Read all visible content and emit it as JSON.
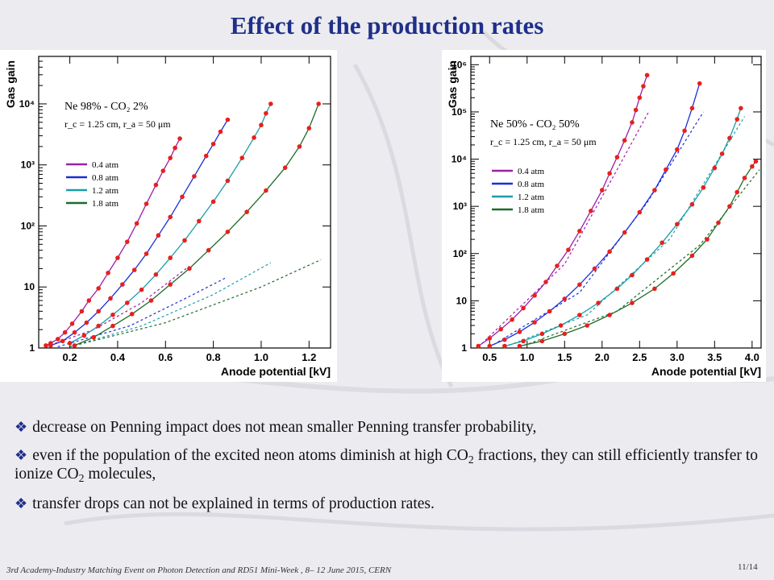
{
  "title": "Effect of the production rates",
  "chart_data": [
    {
      "type": "line",
      "ylabel": "Gas gain",
      "xlabel": "Anode potential [kV]",
      "yscale": "log",
      "ylim": [
        1,
        60000
      ],
      "xlim": [
        0.07,
        1.29
      ],
      "xticks": [
        0.2,
        0.4,
        0.6,
        0.8,
        1.0,
        1.2
      ],
      "xtick_labels": [
        "0.2",
        "0.4",
        "0.6",
        "0.8",
        "1.0",
        "1.2"
      ],
      "yticks": [
        1,
        10,
        100,
        1000,
        10000
      ],
      "ytick_labels": [
        "1",
        "10",
        "10²",
        "10³",
        "10⁴"
      ],
      "annotations": [
        "Ne 98% - CO₂ 2%",
        "r_c = 1.25 cm, r_a = 50 μm"
      ],
      "legend_position": "left-middle",
      "grid": false,
      "series": [
        {
          "name": "0.4 atm",
          "color": "#9b1fa8",
          "x": [
            0.1,
            0.12,
            0.15,
            0.18,
            0.21,
            0.25,
            0.28,
            0.32,
            0.36,
            0.4,
            0.44,
            0.48,
            0.52,
            0.56,
            0.59,
            0.62,
            0.64,
            0.66
          ],
          "y": [
            1.1,
            1.2,
            1.4,
            1.8,
            2.5,
            4,
            6,
            9.5,
            17,
            30,
            55,
            110,
            230,
            470,
            800,
            1300,
            1900,
            2700
          ],
          "dashed_x": [
            0.1,
            0.3,
            0.5,
            0.7
          ],
          "dashed_y": [
            1.05,
            2.0,
            5.5,
            22
          ]
        },
        {
          "name": "0.8 atm",
          "color": "#1b2fd6",
          "x": [
            0.12,
            0.17,
            0.22,
            0.27,
            0.32,
            0.37,
            0.42,
            0.47,
            0.52,
            0.57,
            0.62,
            0.67,
            0.72,
            0.77,
            0.8,
            0.83,
            0.86
          ],
          "y": [
            1.1,
            1.3,
            1.8,
            2.6,
            4,
            6.5,
            11,
            19,
            35,
            70,
            140,
            300,
            650,
            1400,
            2200,
            3500,
            5500
          ],
          "dashed_x": [
            0.15,
            0.45,
            0.7,
            0.85
          ],
          "dashed_y": [
            1.05,
            2.3,
            7,
            14
          ]
        },
        {
          "name": "1.2 atm",
          "color": "#1a9ea8",
          "x": [
            0.2,
            0.26,
            0.32,
            0.38,
            0.44,
            0.5,
            0.56,
            0.62,
            0.68,
            0.74,
            0.8,
            0.86,
            0.92,
            0.97,
            1.0,
            1.02,
            1.04
          ],
          "y": [
            1.2,
            1.6,
            2.3,
            3.5,
            5.5,
            9,
            16,
            30,
            58,
            120,
            250,
            550,
            1300,
            2800,
            4500,
            7000,
            10000
          ],
          "dashed_x": [
            0.2,
            0.5,
            0.8,
            1.04
          ],
          "dashed_y": [
            1.05,
            2.3,
            7.5,
            25
          ]
        },
        {
          "name": "1.8 atm",
          "color": "#1e6b2a",
          "x": [
            0.22,
            0.3,
            0.38,
            0.46,
            0.54,
            0.62,
            0.7,
            0.78,
            0.86,
            0.94,
            1.02,
            1.1,
            1.16,
            1.2,
            1.24
          ],
          "y": [
            1.1,
            1.5,
            2.3,
            3.6,
            6,
            11,
            20,
            40,
            80,
            170,
            380,
            900,
            2000,
            4000,
            10000
          ],
          "dashed_x": [
            0.2,
            0.6,
            1.0,
            1.25
          ],
          "dashed_y": [
            1.05,
            2.6,
            10,
            28
          ]
        }
      ],
      "legend_labels": [
        "0.4 atm",
        "0.8 atm",
        "1.2 atm",
        "1.8 atm"
      ]
    },
    {
      "type": "line",
      "ylabel": "Gas gain",
      "xlabel": "Anode potential [kV]",
      "yscale": "log",
      "ylim": [
        1,
        1500000
      ],
      "xlim": [
        0.25,
        4.12
      ],
      "xticks": [
        0.5,
        1.0,
        1.5,
        2.0,
        2.5,
        3.0,
        3.5,
        4.0
      ],
      "xtick_labels": [
        "0.5",
        "1.0",
        "1.5",
        "2.0",
        "2.5",
        "3.0",
        "3.5",
        "4.0"
      ],
      "yticks": [
        1,
        10,
        100,
        1000,
        10000,
        100000,
        1000000
      ],
      "ytick_labels": [
        "1",
        "10",
        "10²",
        "10³",
        "10⁴",
        "10⁵",
        "10⁶"
      ],
      "annotations": [
        "Ne 50% - CO₂ 50%",
        "r_c = 1.25 cm, r_a = 50 μm"
      ],
      "legend_position": "left-middle",
      "grid": false,
      "series": [
        {
          "name": "0.4 atm",
          "color": "#9b1fa8",
          "x": [
            0.35,
            0.5,
            0.65,
            0.8,
            0.95,
            1.1,
            1.25,
            1.4,
            1.55,
            1.7,
            1.85,
            2.0,
            2.1,
            2.2,
            2.3,
            2.4,
            2.45,
            2.5,
            2.55,
            2.6
          ],
          "y": [
            1.1,
            1.6,
            2.5,
            4,
            7,
            13,
            25,
            55,
            120,
            300,
            800,
            2200,
            5000,
            11000,
            25000,
            60000,
            110000,
            200000,
            350000,
            600000
          ],
          "dashed_x": [
            0.35,
            1.5,
            2.2,
            2.62
          ],
          "dashed_y": [
            1.05,
            60,
            6000,
            100000
          ]
        },
        {
          "name": "0.8 atm",
          "color": "#1b2fd6",
          "x": [
            0.5,
            0.7,
            0.9,
            1.1,
            1.3,
            1.5,
            1.7,
            1.9,
            2.1,
            2.3,
            2.5,
            2.7,
            2.85,
            3.0,
            3.1,
            3.2,
            3.3
          ],
          "y": [
            1.1,
            1.5,
            2.2,
            3.5,
            6,
            11,
            22,
            48,
            110,
            280,
            750,
            2200,
            6000,
            16000,
            40000,
            120000,
            400000
          ],
          "dashed_x": [
            0.5,
            1.7,
            2.6,
            3.35
          ],
          "dashed_y": [
            1.05,
            15,
            1200,
            100000
          ]
        },
        {
          "name": "1.2 atm",
          "color": "#1a9ea8",
          "x": [
            0.7,
            0.95,
            1.2,
            1.45,
            1.7,
            1.95,
            2.2,
            2.4,
            2.6,
            2.8,
            3.0,
            3.2,
            3.35,
            3.5,
            3.6,
            3.7,
            3.8,
            3.85
          ],
          "y": [
            1.1,
            1.4,
            2,
            3,
            5,
            9,
            18,
            35,
            75,
            170,
            420,
            1100,
            2500,
            6500,
            13000,
            28000,
            70000,
            120000
          ],
          "dashed_x": [
            0.7,
            1.8,
            2.9,
            3.9
          ],
          "dashed_y": [
            1.05,
            5,
            200,
            80000
          ]
        },
        {
          "name": "1.8 atm",
          "color": "#1e6b2a",
          "x": [
            0.9,
            1.2,
            1.5,
            1.8,
            2.1,
            2.4,
            2.7,
            2.95,
            3.2,
            3.4,
            3.55,
            3.7,
            3.8,
            3.9,
            4.0,
            4.05
          ],
          "y": [
            1.1,
            1.4,
            2,
            3,
            5,
            9,
            18,
            38,
            90,
            200,
            450,
            1000,
            2000,
            4000,
            7000,
            9000
          ],
          "dashed_x": [
            0.9,
            2.2,
            3.3,
            4.1
          ],
          "dashed_y": [
            1.05,
            6,
            150,
            6000
          ]
        }
      ],
      "legend_labels": [
        "0.4 atm",
        "0.8 atm",
        "1.2 atm",
        "1.8 atm"
      ]
    }
  ],
  "bullets": {
    "b1": "decrease on Penning impact does not mean smaller Penning transfer probability,",
    "b2_a": "even if the population of the excited neon atoms diminish at high CO",
    "b2_sub1": "2",
    "b2_b": " fractions, they can still efficiently transfer to ionize CO",
    "b2_sub2": "2",
    "b2_c": " molecules,",
    "b3": "transfer drops can not be explained in terms of production rates."
  },
  "footer": "3rd Academy-Industry Matching Event on Photon Detection and RD51 Mini-Week , 8– 12 June 2015, CERN",
  "page_number": "11/14",
  "colors": {
    "title": "#1f2f8a",
    "marker": "#e8201c"
  }
}
